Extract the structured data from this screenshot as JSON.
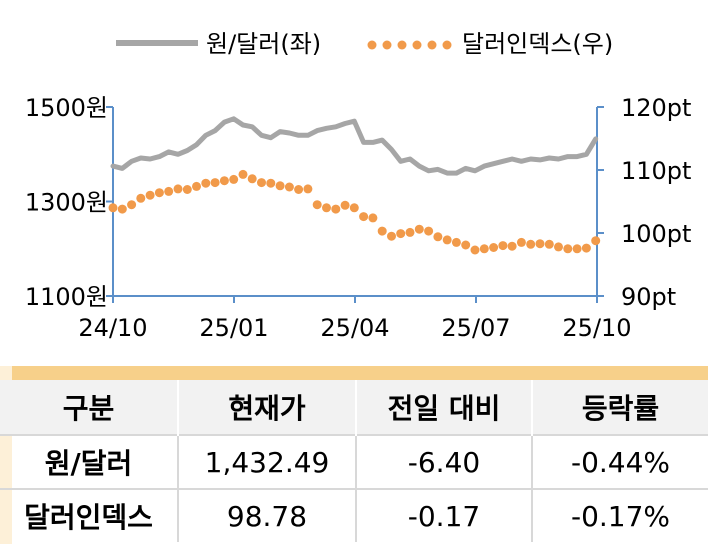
{
  "chart_data": {
    "type": "line",
    "x_ticks": [
      "24/10",
      "25/01",
      "25/04",
      "25/07",
      "25/10"
    ],
    "y_left_ticks": [
      "1500원",
      "1300원",
      "1100원"
    ],
    "y_left_lim": [
      1100,
      1500
    ],
    "y_right_ticks": [
      "120pt",
      "110pt",
      "100pt",
      "90pt"
    ],
    "y_right_lim": [
      90,
      120
    ],
    "legend_position": "top",
    "series": [
      {
        "name": "원/달러(좌)",
        "axis": "left",
        "style": "line",
        "color": "#a6a6a6",
        "x": [
          "24/10/01",
          "24/10/08",
          "24/10/15",
          "24/10/22",
          "24/10/29",
          "24/11/05",
          "24/11/12",
          "24/11/19",
          "24/11/26",
          "24/12/03",
          "24/12/10",
          "24/12/17",
          "24/12/24",
          "24/12/31",
          "25/01/07",
          "25/01/14",
          "25/01/21",
          "25/01/28",
          "25/02/04",
          "25/02/11",
          "25/02/18",
          "25/02/25",
          "25/03/04",
          "25/03/11",
          "25/03/18",
          "25/03/25",
          "25/04/01",
          "25/04/08",
          "25/04/15",
          "25/04/22",
          "25/04/29",
          "25/05/06",
          "25/05/13",
          "25/05/20",
          "25/05/27",
          "25/06/03",
          "25/06/10",
          "25/06/17",
          "25/06/24",
          "25/07/01",
          "25/07/08",
          "25/07/15",
          "25/07/22",
          "25/07/29",
          "25/08/05",
          "25/08/12",
          "25/08/19",
          "25/08/26",
          "25/09/02",
          "25/09/09",
          "25/09/16",
          "25/09/23",
          "25/09/30"
        ],
        "values": [
          1375,
          1370,
          1385,
          1392,
          1390,
          1395,
          1405,
          1400,
          1408,
          1420,
          1440,
          1450,
          1468,
          1475,
          1462,
          1458,
          1440,
          1435,
          1448,
          1445,
          1440,
          1440,
          1450,
          1455,
          1458,
          1465,
          1470,
          1425,
          1425,
          1430,
          1410,
          1385,
          1390,
          1375,
          1365,
          1368,
          1360,
          1360,
          1370,
          1365,
          1375,
          1380,
          1385,
          1390,
          1385,
          1390,
          1388,
          1392,
          1390,
          1395,
          1395,
          1400,
          1432.49
        ]
      },
      {
        "name": "달러인덱스(우)",
        "axis": "right",
        "style": "dots",
        "color": "#f19a4a",
        "x": [
          "24/10/01",
          "24/10/08",
          "24/10/15",
          "24/10/22",
          "24/10/29",
          "24/11/05",
          "24/11/12",
          "24/11/19",
          "24/11/26",
          "24/12/03",
          "24/12/10",
          "24/12/17",
          "24/12/24",
          "24/12/31",
          "25/01/07",
          "25/01/14",
          "25/01/21",
          "25/01/28",
          "25/02/04",
          "25/02/11",
          "25/02/18",
          "25/02/25",
          "25/03/04",
          "25/03/11",
          "25/03/18",
          "25/03/25",
          "25/04/01",
          "25/04/08",
          "25/04/15",
          "25/04/22",
          "25/04/29",
          "25/05/06",
          "25/05/13",
          "25/05/20",
          "25/05/27",
          "25/06/03",
          "25/06/10",
          "25/06/17",
          "25/06/24",
          "25/07/01",
          "25/07/08",
          "25/07/15",
          "25/07/22",
          "25/07/29",
          "25/08/05",
          "25/08/12",
          "25/08/19",
          "25/08/26",
          "25/09/02",
          "25/09/09",
          "25/09/16",
          "25/09/23",
          "25/09/30"
        ],
        "values": [
          104.0,
          103.8,
          104.5,
          105.5,
          106.0,
          106.4,
          106.6,
          107.0,
          106.9,
          107.4,
          107.9,
          108.0,
          108.3,
          108.5,
          109.3,
          108.6,
          108.0,
          107.9,
          107.5,
          107.3,
          106.9,
          107.0,
          104.5,
          104.0,
          103.8,
          104.4,
          104.0,
          102.6,
          102.4,
          100.3,
          99.5,
          99.9,
          100.1,
          100.6,
          100.3,
          99.4,
          98.9,
          98.5,
          98.1,
          97.3,
          97.5,
          97.7,
          98.0,
          97.9,
          98.5,
          98.2,
          98.3,
          98.2,
          97.8,
          97.5,
          97.5,
          97.6,
          98.78
        ]
      }
    ]
  },
  "table": {
    "headers": [
      "구분",
      "현재가",
      "전일 대비",
      "등락률"
    ],
    "rows": [
      [
        "원/달러",
        "1,432.49",
        "-6.40",
        "-0.44%"
      ],
      [
        "달러인덱스",
        "98.78",
        "-0.17",
        "-0.17%"
      ]
    ]
  }
}
